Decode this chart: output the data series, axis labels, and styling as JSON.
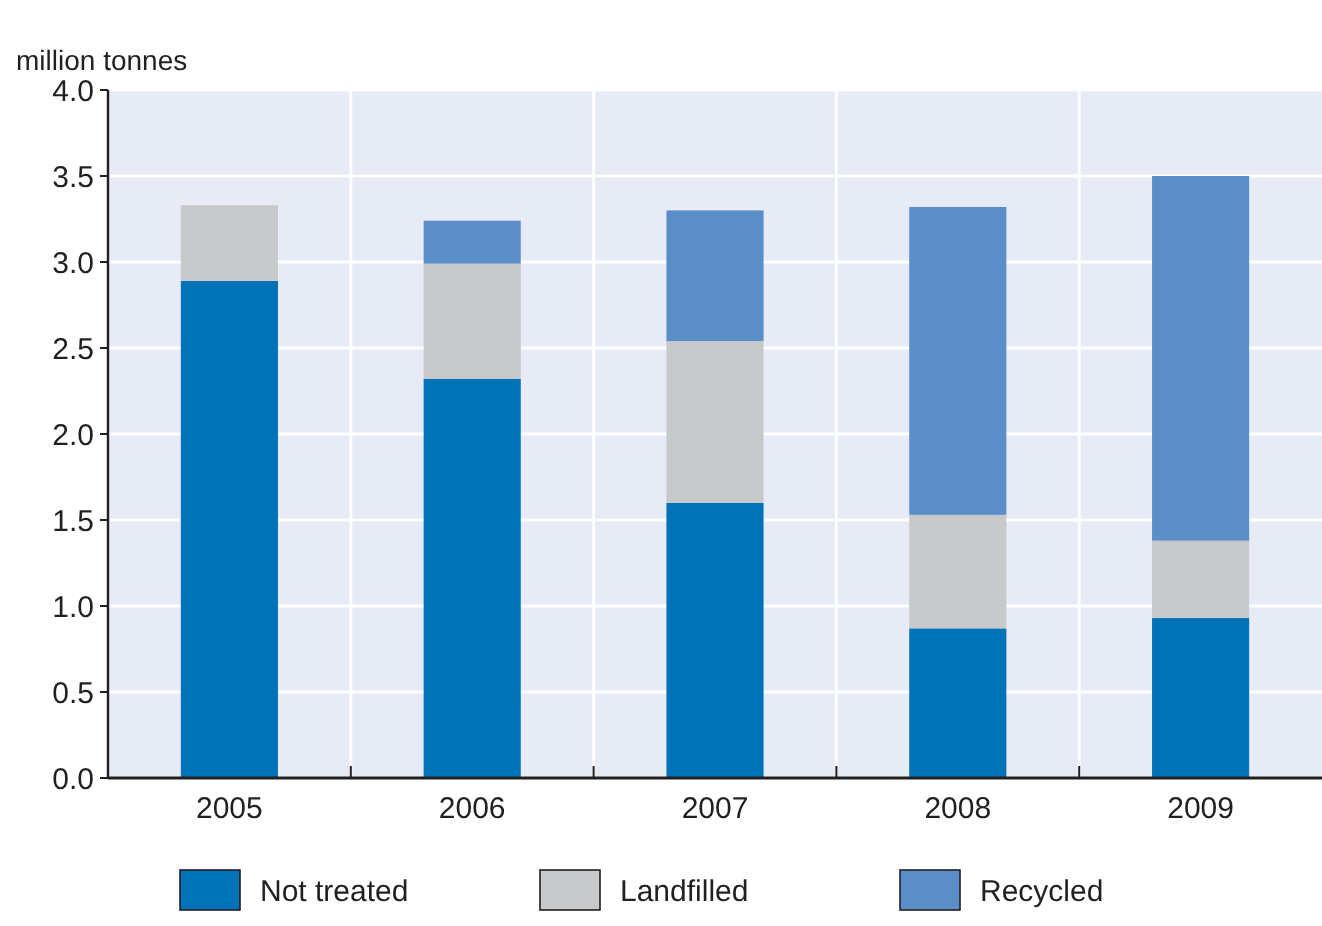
{
  "chart_data": {
    "type": "bar",
    "ylabel": "million tonnes",
    "categories": [
      "2005",
      "2006",
      "2007",
      "2008",
      "2009"
    ],
    "stacked": true,
    "series": [
      {
        "name": "Not treated",
        "color": "#0072b8",
        "values": [
          2.89,
          2.32,
          1.6,
          0.87,
          0.93
        ]
      },
      {
        "name": "Landfilled",
        "color": "#c8c9cb",
        "values": [
          0.44,
          0.67,
          0.94,
          0.66,
          0.45
        ]
      },
      {
        "name": "Recycled",
        "color": "#5b8ec9",
        "values": [
          0,
          0.25,
          0.76,
          1.79,
          2.12
        ]
      }
    ],
    "ylim": [
      0,
      4
    ],
    "yticks": [
      {
        "value": 0,
        "label": "0.0"
      },
      {
        "value": 0.5,
        "label": "0.5"
      },
      {
        "value": 1,
        "label": "1.0"
      },
      {
        "value": 1.5,
        "label": "1.5"
      },
      {
        "value": 2,
        "label": "2.0"
      },
      {
        "value": 2.5,
        "label": "2.5"
      },
      {
        "value": 3,
        "label": "3.0"
      },
      {
        "value": 3.5,
        "label": "3.5"
      },
      {
        "value": 4,
        "label": "4.0"
      }
    ],
    "grid": true,
    "legend": "bottom"
  }
}
